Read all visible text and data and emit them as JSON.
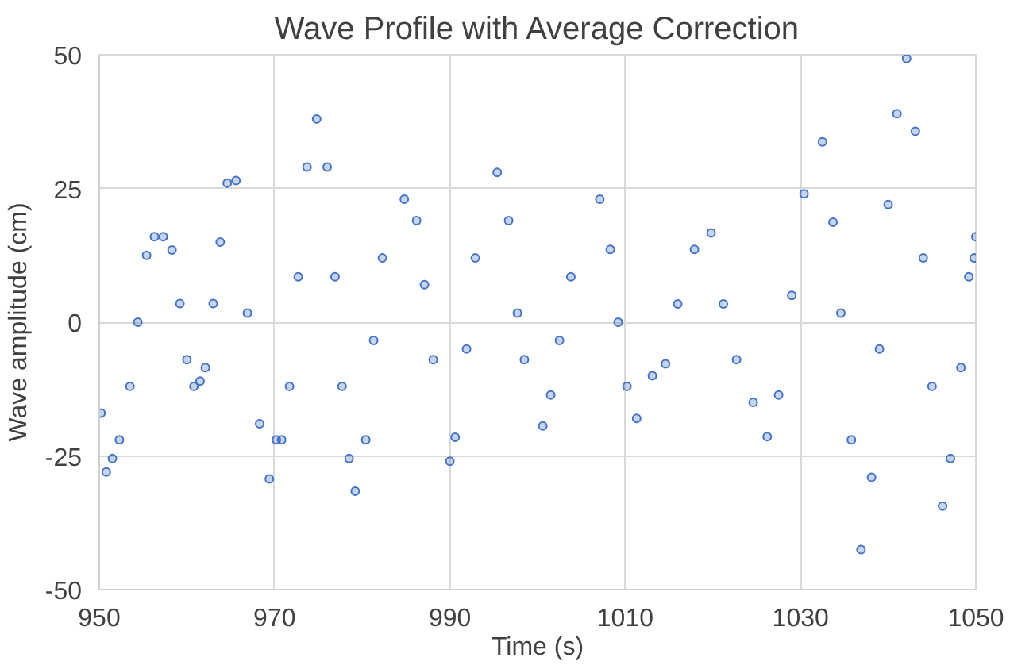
{
  "chart_data": {
    "type": "scatter",
    "title": "Wave Profile with Average Correction",
    "xlabel": "Time (s)",
    "ylabel": "Wave amplitude (cm)",
    "xlim": [
      950,
      1050
    ],
    "xticks": [
      950,
      970,
      990,
      1010,
      1030,
      1050
    ],
    "ylim": [
      -50,
      50
    ],
    "yticks": [
      -50,
      -25,
      0,
      25,
      50
    ],
    "grid": true,
    "marker": "circle",
    "series": [
      {
        "color": "#4472c4",
        "x": [
          950.2,
          950.8,
          951.5,
          952.3,
          953.5,
          954.4,
          955.4,
          956.3,
          957.3,
          958.3,
          959.2,
          960,
          960.8,
          961.5,
          962.1,
          963,
          963.8,
          964.6,
          965.6,
          966.9,
          968.3,
          969.4,
          970.2,
          970.8,
          971.7,
          972.7,
          973.7,
          974.8,
          976,
          976.9,
          977.7,
          978.5,
          979.2,
          980.4,
          981.3,
          982.3,
          984.8,
          986.2,
          987.1,
          988.1,
          990,
          990.6,
          991.9,
          992.9,
          995.4,
          996.7,
          997.7,
          998.5,
          1000.6,
          1001.5,
          1002.5,
          1003.8,
          1007.1,
          1008.3,
          1009.2,
          1010.2,
          1011.3,
          1013.1,
          1014.6,
          1016,
          1017.9,
          1019.8,
          1021.2,
          1022.7,
          1024.6,
          1026.2,
          1027.5,
          1029,
          1030.4,
          1032.5,
          1033.7,
          1034.6,
          1035.8,
          1036.9,
          1038.1,
          1039,
          1040,
          1041,
          1042.1,
          1043.1,
          1044,
          1045,
          1046.2,
          1047.1,
          1048.3,
          1049.2,
          1049.8,
          1050
        ],
        "values": [
          -17,
          -28,
          -25.5,
          -22,
          -12,
          0,
          12.5,
          16,
          16,
          13.5,
          3.5,
          -7,
          -12,
          -11,
          -8.5,
          3.5,
          15,
          26,
          26.5,
          1.7,
          -19,
          -29.3,
          -22,
          -22,
          -12,
          8.5,
          29,
          38,
          29,
          8.5,
          -12,
          -25.5,
          -31.6,
          -22,
          -3.4,
          12,
          23,
          19,
          7,
          -7,
          -26,
          -21.5,
          -5,
          12,
          28,
          19,
          1.7,
          -7,
          -19.4,
          -13.6,
          -3.4,
          8.5,
          23,
          13.6,
          0,
          -12,
          -18,
          -10,
          -7.8,
          3.4,
          13.6,
          16.7,
          3.4,
          -7,
          -15,
          -21.4,
          -13.6,
          5,
          24,
          33.7,
          18.7,
          1.7,
          -22,
          -42.5,
          -29,
          -5,
          22,
          39,
          49.3,
          35.7,
          12,
          -12,
          -34.4,
          -25.5,
          -8.5,
          8.5,
          12,
          16
        ]
      }
    ]
  }
}
